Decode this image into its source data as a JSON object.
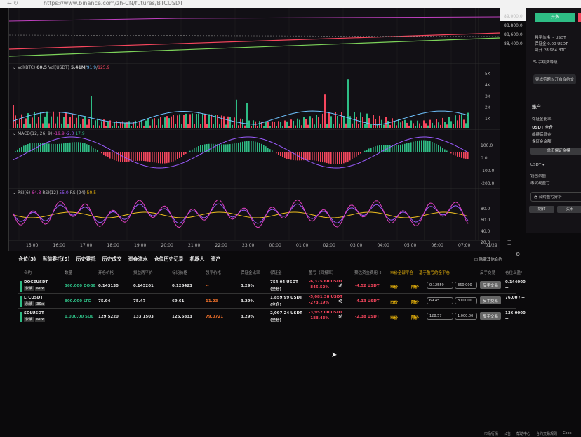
{
  "browser": {
    "url": "https://www.binance.com/zh-CN/futures/BTCUSDT",
    "nav": "←  ↻"
  },
  "price_axis": [
    "89,000.0",
    "88,800.0",
    "88,600.0",
    "88,400.0"
  ],
  "volume": {
    "label": "Vol(BTC)",
    "btc": "60.5",
    "usdt_label": "Vol(USDT)",
    "usdt": "5.41M",
    "ma1": "91.9",
    "ma2": "125.9",
    "axis": [
      "5K",
      "4K",
      "3K",
      "2K",
      "1K"
    ]
  },
  "macd": {
    "label": "MACD(12, 26, 9)",
    "dif": "-19.9",
    "dea": "-2.0",
    "hist": "17.9",
    "axis": [
      "100.0",
      "0.0",
      "-100.0",
      "-200.0"
    ]
  },
  "rsi": {
    "label6": "RSI(6)",
    "v6": "64.3",
    "label12": "RSI(12)",
    "v12": "55.0",
    "label24": "RSI(24)",
    "v24": "50.5",
    "axis": [
      "80.0",
      "60.0",
      "40.0",
      "20.0"
    ]
  },
  "time_axis": [
    "15:00",
    "16:00",
    "17:00",
    "18:00",
    "19:00",
    "20:00",
    "21:00",
    "22:00",
    "23:00",
    "00:00",
    "01:00",
    "02:00",
    "03:00",
    "04:00",
    "05:00",
    "06:00",
    "07:00",
    "01/29"
  ],
  "colors": {
    "up": "#2ebd85",
    "down": "#f6465d",
    "accent": "#f0b90b",
    "rsi6": "#e040c0",
    "rsi12": "#9c5cff",
    "rsi24": "#f0c020"
  },
  "side": {
    "open_long": "开多",
    "liq_price": "强平价格 -- USDT",
    "margin": "保证金 0.00 USDT",
    "can_open": "可开 28.984 BTC",
    "fee_level": "% 手续费等级",
    "complete_verify": "完成答题以开启合约交",
    "account": "账户",
    "margin_ratio": "保证金比率",
    "usdt_cross": "USDT 全仓",
    "maint_margin": "维持保证金",
    "margin_balance": "保证金余额",
    "single_margin": "单币保证金模",
    "usdt_select": "USDT ▾",
    "wallet_balance": "钱包余额",
    "unrealized_pnl": "未实现盈亏",
    "contract_analysis": "合约盈亏分析",
    "transfer": "划转",
    "buy": "买币"
  },
  "tabs": [
    "仓位(3)",
    "当前委托(5)",
    "历史委托",
    "历史成交",
    "资金流水",
    "仓位历史记录",
    "机器人",
    "资产"
  ],
  "hide_other": "隐藏其他合约",
  "headers": [
    "合约",
    "数量",
    "开仓价格",
    "损益两平价",
    "标记价格",
    "强平价格",
    "保证金比率",
    "保证金",
    "盈亏（回报率）",
    "预估资金费用 ⇕",
    "市价全部平仓",
    "基于盈亏的全平仓",
    "反手交易",
    "仓位止盈/"
  ],
  "positions": [
    {
      "symbol": "DOGEUSDT",
      "type": "永续",
      "lev": "60x",
      "qty": "360,000 DOGE",
      "entry": "0.143130",
      "breakeven": "0.143201",
      "mark": "0.125423",
      "liq": "--",
      "ratio": "3.29%",
      "margin": "754.04 USDT",
      "mode": "(全仓)",
      "pnl": "-6,375.60 USDT",
      "roe": "-845.52%",
      "funding": "-4.52 USDT",
      "market": "市价",
      "limit": "限价",
      "price_in": "0.12559",
      "qty_in": "360,000",
      "reverse": "反手交易",
      "tpsl": "0.144000",
      "tpsl2": "--"
    },
    {
      "symbol": "LTCUSDT",
      "type": "永续",
      "lev": "30x",
      "qty": "800.000 LTC",
      "entry": "75.94",
      "breakeven": "75.47",
      "mark": "69.61",
      "liq": "11.23",
      "ratio": "3.29%",
      "margin": "1,859.99 USDT",
      "mode": "(全仓)",
      "pnl": "-5,081.38 USDT",
      "roe": "-273.19%",
      "funding": "-4.13 USDT",
      "market": "市价",
      "limit": "限价",
      "price_in": "69.45",
      "qty_in": "800.000",
      "reverse": "反手交易",
      "tpsl": "76.00 / --",
      "tpsl2": ""
    },
    {
      "symbol": "SOLUSDT",
      "type": "永续",
      "lev": "60x",
      "qty": "1,000.00 SOL",
      "entry": "129.5220",
      "breakeven": "133.1503",
      "mark": "125.5833",
      "liq": "79.0721",
      "ratio": "3.29%",
      "margin": "2,097.24 USDT",
      "mode": "(全仓)",
      "pnl": "-3,952.00 USDT",
      "roe": "-188.43%",
      "funding": "-2.38 USDT",
      "market": "市价",
      "limit": "限价",
      "price_in": "128.57",
      "qty_in": "1,000.00",
      "reverse": "反手交易",
      "tpsl": "136.0000",
      "tpsl2": "--"
    }
  ],
  "footer": [
    "市场行情",
    "公告",
    "帮助中心",
    "合约交易规则",
    "Cook"
  ]
}
